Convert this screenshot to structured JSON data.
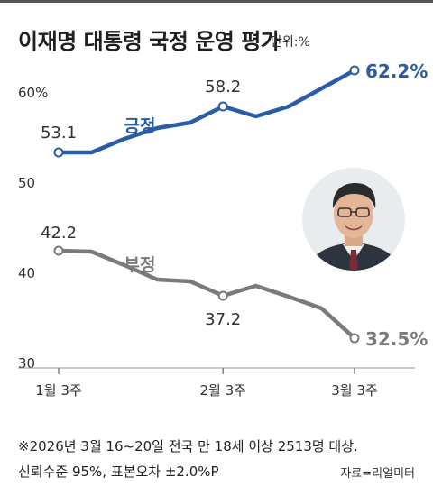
{
  "header": {
    "title": "이재명 대통령 국정 운영 평가",
    "unit": "단위:%"
  },
  "chart_data": {
    "type": "line",
    "title": "이재명 대통령 국정 운영 평가",
    "unit": "단위:%",
    "x": [
      0,
      1,
      2,
      3,
      4,
      5,
      6,
      7,
      8,
      9
    ],
    "x_tick_labels": [
      {
        "x": 0,
        "label": "1월 3주"
      },
      {
        "x": 5,
        "label": "2월 3주"
      },
      {
        "x": 9,
        "label": "3월 3주"
      }
    ],
    "yticks": [
      60,
      50,
      40,
      30
    ],
    "yticks_text": [
      "60%",
      "50",
      "40",
      "30"
    ],
    "ylim": [
      30,
      63
    ],
    "grid": false,
    "series": [
      {
        "name": "긍정",
        "color": "#2a5ca8",
        "values": [
          53.1,
          53.1,
          54.6,
          55.8,
          56.4,
          58.2,
          57.1,
          58.2,
          60.2,
          62.2
        ],
        "labels": [
          {
            "index": 0,
            "text": "53.1"
          },
          {
            "index": 5,
            "text": "58.2"
          },
          {
            "index": 9,
            "text": "62.2%"
          }
        ]
      },
      {
        "name": "부정",
        "color": "#7a7a7a",
        "values": [
          42.2,
          42.1,
          40.6,
          39.0,
          38.8,
          37.2,
          38.3,
          37.1,
          35.8,
          32.5
        ],
        "labels": [
          {
            "index": 0,
            "text": "42.2"
          },
          {
            "index": 5,
            "text": "37.2"
          },
          {
            "index": 9,
            "text": "32.5%"
          }
        ]
      }
    ]
  },
  "footnote": {
    "line1": "※2026년 3월 16~20일 전국 만 18세 이상 2513명 대상.",
    "line2": "신뢰수준 95%, 표본오차 ±2.0%P",
    "source": "자료=리얼미터"
  }
}
